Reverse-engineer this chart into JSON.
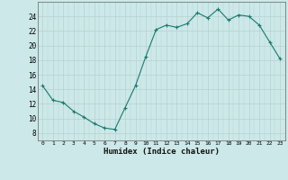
{
  "x": [
    0,
    1,
    2,
    3,
    4,
    5,
    6,
    7,
    8,
    9,
    10,
    11,
    12,
    13,
    14,
    15,
    16,
    17,
    18,
    19,
    20,
    21,
    22,
    23
  ],
  "y": [
    14.5,
    12.5,
    12.2,
    11.0,
    10.2,
    9.3,
    8.7,
    8.5,
    11.5,
    14.5,
    18.5,
    22.2,
    22.8,
    22.5,
    23.0,
    24.5,
    23.8,
    25.0,
    23.5,
    24.2,
    24.0,
    22.8,
    20.5,
    18.2
  ],
  "xlabel": "Humidex (Indice chaleur)",
  "xlim": [
    -0.5,
    23.5
  ],
  "ylim": [
    7,
    26
  ],
  "yticks": [
    8,
    10,
    12,
    14,
    16,
    18,
    20,
    22,
    24
  ],
  "xticks": [
    0,
    1,
    2,
    3,
    4,
    5,
    6,
    7,
    8,
    9,
    10,
    11,
    12,
    13,
    14,
    15,
    16,
    17,
    18,
    19,
    20,
    21,
    22,
    23
  ],
  "line_color": "#1a7a6e",
  "marker": "+",
  "marker_size": 3,
  "bg_color": "#cce8e8",
  "grid_color_major": "#b8d0d0",
  "grid_color_minor": "#d4e8e8",
  "axis_color": "#666666"
}
